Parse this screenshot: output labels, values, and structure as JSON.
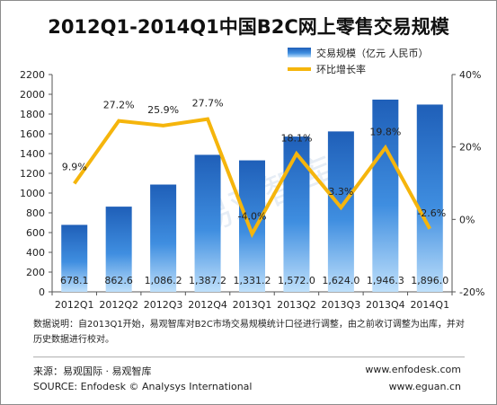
{
  "title": "2012Q1-2014Q1中国B2C网上零售交易规模",
  "watermark": "易观智库",
  "note": "数据说明：自2013Q1开始，易观智库对B2C市场交易规模统计口径进行调整，由之前收订调整为出库，并对历史数据进行校对。",
  "footer": {
    "source_cn": "来源：易观国际 · 易观智库",
    "source_en": "SOURCE: Enfodesk © Analysys International",
    "site1": "www.enfodesk.com",
    "site2": "www.eguan.cn"
  },
  "chart_data": {
    "type": "bar",
    "categories": [
      "2012Q1",
      "2012Q2",
      "2012Q3",
      "2012Q4",
      "2013Q1",
      "2013Q2",
      "2013Q3",
      "2013Q4",
      "2014Q1"
    ],
    "series": [
      {
        "name": "交易规模（亿元 人民币）",
        "type": "bar",
        "axis": "left",
        "values": [
          678.1,
          862.6,
          1086.2,
          1387.2,
          1331.2,
          1572.0,
          1624.0,
          1946.3,
          1896.0
        ],
        "labels": [
          "678.1",
          "862.6",
          "1,086.2",
          "1,387.2",
          "1,331.2",
          "1,572.0",
          "1,624.0",
          "1,946.3",
          "1,896.0"
        ],
        "color": "#2f7fd6"
      },
      {
        "name": "环比增长率",
        "type": "line",
        "axis": "right",
        "values": [
          9.9,
          27.2,
          25.9,
          27.7,
          -4.0,
          18.1,
          3.3,
          19.8,
          -2.6
        ],
        "labels": [
          "9.9%",
          "27.2%",
          "25.9%",
          "27.7%",
          "-4.0%",
          "18.1%",
          "3.3%",
          "19.8%",
          "-2.6%"
        ],
        "color": "#f5b50c"
      }
    ],
    "y_left": {
      "min": 0,
      "max": 2200,
      "step": 200,
      "ticks": [
        "0",
        "200",
        "400",
        "600",
        "800",
        "1000",
        "1200",
        "1400",
        "1600",
        "1800",
        "2000",
        "2200"
      ]
    },
    "y_right": {
      "min": -20,
      "max": 40,
      "step": 20,
      "ticks": [
        "-20%",
        "0%",
        "20%",
        "40%"
      ]
    },
    "grid": false,
    "legend": "top-right"
  }
}
